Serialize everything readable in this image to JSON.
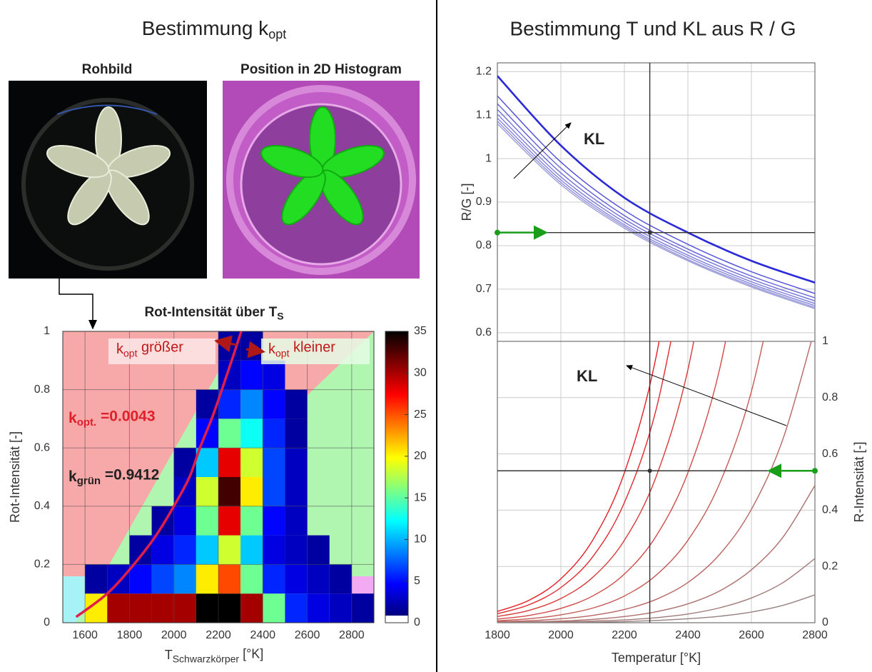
{
  "panels": {
    "left_title": {
      "main": "Bestimmung k",
      "sub": "opt"
    },
    "right_title": "Bestimmung T und KL aus R / G",
    "image_labels": [
      "Rohbild",
      "Position in 2D Histogram"
    ]
  },
  "chart_data": [
    {
      "type": "heatmap",
      "title": {
        "main": "Rot-Intensität über T",
        "sub": "S"
      },
      "x_label": {
        "main": "T",
        "sub": "Schwarzkörper",
        "after": " [°K]"
      },
      "y_label": "Rot-Intensität [-]",
      "xbins": [
        1500,
        1600,
        1700,
        1800,
        1900,
        2000,
        2100,
        2200,
        2300,
        2400,
        2500,
        2600,
        2700,
        2800,
        2900
      ],
      "ybins": [
        0,
        0.1,
        0.2,
        0.3,
        0.4,
        0.5,
        0.6,
        0.7,
        0.8,
        0.9,
        1
      ],
      "z": [
        [
          0,
          20,
          30,
          30,
          30,
          30,
          35,
          35,
          30,
          15,
          5,
          3,
          2,
          1
        ],
        [
          0,
          1,
          2,
          4,
          6,
          8,
          20,
          25,
          15,
          5,
          3,
          2,
          1,
          0
        ],
        [
          0,
          0,
          0,
          1,
          3,
          5,
          10,
          18,
          10,
          3,
          2,
          1,
          0,
          0
        ],
        [
          0,
          0,
          0,
          0,
          1,
          3,
          15,
          28,
          15,
          4,
          2,
          0,
          0,
          0
        ],
        [
          0,
          0,
          0,
          0,
          0,
          2,
          18,
          33,
          20,
          6,
          2,
          0,
          0,
          0
        ],
        [
          0,
          0,
          0,
          0,
          0,
          1,
          10,
          28,
          18,
          6,
          2,
          0,
          0,
          0
        ],
        [
          0,
          0,
          0,
          0,
          0,
          0,
          4,
          15,
          12,
          5,
          1,
          0,
          0,
          0
        ],
        [
          0,
          0,
          0,
          0,
          0,
          0,
          1,
          5,
          8,
          4,
          1,
          0,
          0,
          0
        ],
        [
          0,
          0,
          0,
          0,
          0,
          0,
          0,
          2,
          4,
          3,
          0,
          0,
          0,
          0
        ],
        [
          0,
          0,
          0,
          0,
          0,
          0,
          0,
          1,
          1,
          0,
          0,
          0,
          0,
          0
        ]
      ],
      "xlim": [
        1500,
        2900
      ],
      "xticks": [
        1600,
        1800,
        2000,
        2200,
        2400,
        2600,
        2800
      ],
      "ylim": [
        0,
        1
      ],
      "yticks": [
        0,
        0.2,
        0.4,
        0.6,
        0.8,
        1
      ],
      "grid": true,
      "colormap": [
        "#00007f",
        "#0000ff",
        "#0080ff",
        "#00ffff",
        "#80ff80",
        "#ffff00",
        "#ff8000",
        "#ff0000",
        "#800000",
        "#000000"
      ],
      "colorbar": {
        "lim": [
          0,
          35
        ],
        "ticks": [
          0,
          5,
          10,
          15,
          20,
          25,
          30,
          35
        ]
      },
      "curve": {
        "color": "#e01e4a",
        "x": [
          1560,
          1700,
          1820,
          1920,
          2000,
          2070,
          2117,
          2170,
          2216,
          2260,
          2303
        ],
        "values": [
          0.02,
          0.1,
          0.2,
          0.3,
          0.4,
          0.5,
          0.6,
          0.7,
          0.8,
          0.9,
          1
        ]
      },
      "annotations": [
        {
          "main": "k",
          "sub": "opt",
          "after": " größer"
        },
        {
          "main": "k",
          "sub": "opt",
          "after": " kleiner"
        },
        {
          "main": "k",
          "sub": "opt.",
          "after": " =0.0043"
        },
        {
          "main": "k",
          "sub": "grün",
          "after": " =0.9412"
        }
      ]
    },
    {
      "type": "line",
      "y_label": "R/G [-]",
      "x": [
        1800,
        2000,
        2200,
        2400,
        2600,
        2800
      ],
      "series": [
        {
          "color": "#9c9cd8",
          "values": [
            1.08,
            0.94,
            0.84,
            0.765,
            0.705,
            0.655
          ]
        },
        {
          "color": "#9292d8",
          "values": [
            1.086,
            0.945,
            0.844,
            0.768,
            0.708,
            0.658
          ]
        },
        {
          "color": "#8787d8",
          "values": [
            1.093,
            0.951,
            0.848,
            0.773,
            0.712,
            0.662
          ]
        },
        {
          "color": "#7c7cd8",
          "values": [
            1.102,
            0.958,
            0.854,
            0.778,
            0.717,
            0.667
          ]
        },
        {
          "color": "#6f6fd8",
          "values": [
            1.113,
            0.967,
            0.861,
            0.785,
            0.723,
            0.673
          ]
        },
        {
          "color": "#6060d8",
          "values": [
            1.126,
            0.978,
            0.869,
            0.792,
            0.73,
            0.68
          ]
        },
        {
          "color": "#4c4cd8",
          "values": [
            1.144,
            0.992,
            0.881,
            0.803,
            0.74,
            0.69
          ]
        },
        {
          "color": "#2a2ad8",
          "values": [
            1.19,
            1.03,
            0.91,
            0.83,
            0.765,
            0.715
          ]
        }
      ],
      "xlim": [
        1800,
        2800
      ],
      "xticks": [
        1800,
        2000,
        2200,
        2400,
        2600,
        2800
      ],
      "ylim": [
        0.58,
        1.22
      ],
      "yticks": [
        0.6,
        0.7,
        0.8,
        0.9,
        1,
        1.1,
        1.2
      ],
      "grid": true,
      "measured": {
        "y": 0.83,
        "x": 2280
      },
      "annotations": [
        "KL"
      ]
    },
    {
      "type": "line",
      "x_label": "Temperatur [°K]",
      "y2_label": "R-Intensität [-]",
      "x": [
        1800,
        1900,
        2000,
        2100,
        2200,
        2300,
        2400,
        2500,
        2600,
        2700,
        2800
      ],
      "series": [
        {
          "axis": "y2",
          "color": "#e41e26",
          "values": [
            0.04,
            0.08,
            0.156,
            0.293,
            0.533,
            0.946,
            1.637,
            null,
            null,
            null,
            null
          ]
        },
        {
          "axis": "y2",
          "color": "#e02a2e",
          "values": [
            0.032,
            0.064,
            0.125,
            0.234,
            0.427,
            0.758,
            1.311,
            null,
            null,
            null,
            null
          ]
        },
        {
          "axis": "y2",
          "color": "#d83a3a",
          "values": [
            0.022,
            0.044,
            0.086,
            0.161,
            0.293,
            0.519,
            0.899,
            1.52,
            null,
            null,
            null
          ]
        },
        {
          "axis": "y2",
          "color": "#cf4a48",
          "values": [
            0.013,
            0.026,
            0.051,
            0.095,
            0.173,
            0.308,
            0.533,
            0.902,
            1.498,
            null,
            null
          ]
        },
        {
          "axis": "y2",
          "color": "#c45a55",
          "values": [
            0.007,
            0.014,
            0.028,
            0.052,
            0.095,
            0.169,
            0.293,
            0.495,
            0.822,
            1.336,
            null
          ]
        },
        {
          "axis": "y2",
          "color": "#b86663",
          "values": [
            0.004,
            0.007,
            0.014,
            0.026,
            0.047,
            0.083,
            0.143,
            0.243,
            0.403,
            0.655,
            1.047
          ]
        },
        {
          "axis": "y2",
          "color": "#ab706d",
          "values": [
            0.002,
            0.003,
            0.006,
            0.012,
            0.022,
            0.039,
            0.067,
            0.113,
            0.188,
            0.305,
            0.488
          ]
        },
        {
          "axis": "y2",
          "color": "#a07a78",
          "values": [
            0.001,
            0.002,
            0.003,
            0.006,
            0.01,
            0.018,
            0.031,
            0.053,
            0.088,
            0.143,
            0.228
          ]
        },
        {
          "axis": "y2",
          "color": "#968280",
          "values": [
            0,
            0.001,
            0.001,
            0.002,
            0.004,
            0.008,
            0.014,
            0.023,
            0.038,
            0.062,
            0.099
          ]
        }
      ],
      "xlim": [
        1800,
        2800
      ],
      "xticks": [
        1800,
        2000,
        2200,
        2400,
        2600,
        2800
      ],
      "y2lim": [
        0,
        1
      ],
      "y2ticks": [
        0,
        0.2,
        0.4,
        0.6,
        0.8,
        1
      ],
      "grid": true,
      "measured": {
        "y": 0.54,
        "x": 2280
      },
      "annotations": [
        "KL"
      ]
    }
  ]
}
